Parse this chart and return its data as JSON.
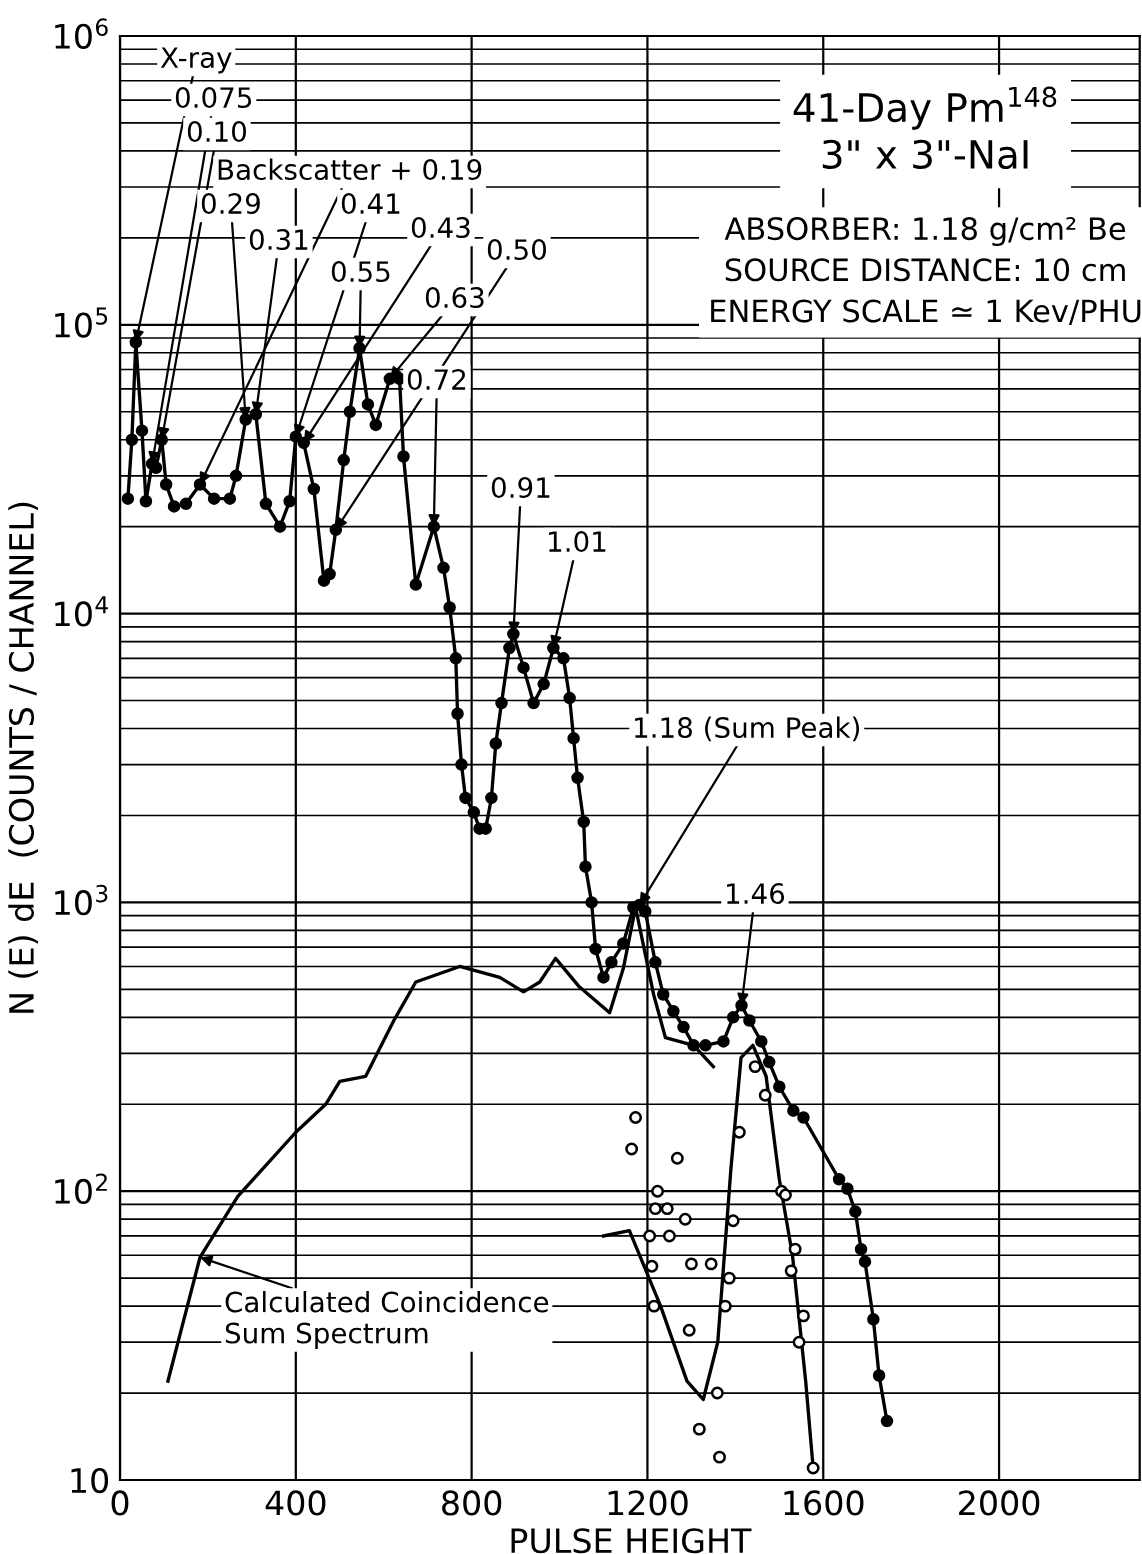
{
  "chart_data": {
    "type": "line",
    "title": "41-Day Pm$^{148}$\n3\" x 3\"-NaI",
    "subtitle": "ABSORBER: 1.18 g/cm² Be\nSOURCE DISTANCE: 10 cm\nENERGY SCALE ≃ 1 Kev/PHU",
    "xlabel": "PULSE HEIGHT",
    "ylabel": "N (E) dE  (COUNTS / CHANNEL)",
    "log": "y",
    "xlim": [
      0,
      2320
    ],
    "ylim": [
      10,
      1000000
    ],
    "xticks": [
      0,
      400,
      800,
      1200,
      1600,
      2000
    ],
    "yticks": [
      10,
      {
        "value": 100,
        "label": "10$^{2}$"
      },
      {
        "value": 1000,
        "label": "10$^{3}$"
      },
      {
        "value": 10000,
        "label": "10$^{4}$"
      },
      {
        "value": 100000,
        "label": "10$^{5}$"
      },
      {
        "value": 1000000,
        "label": "10$^{6}$"
      }
    ],
    "grid": true,
    "series": [
      {
        "color": "#000000",
        "marker": "circle",
        "x": [
          18,
          27,
          36,
          50,
          59,
          73,
          82,
          95,
          105,
          123,
          150,
          182,
          214,
          250,
          264,
          286,
          309,
          332,
          364,
          386,
          400,
          418,
          441,
          464,
          477,
          491,
          509,
          523,
          545,
          564,
          582,
          614,
          636,
          645,
          673,
          714,
          736,
          750,
          764,
          768,
          777,
          786,
          805,
          818,
          832,
          845,
          855,
          868,
          886,
          895,
          918,
          941,
          964,
          986,
          1009,
          1023,
          1032,
          1041,
          1055,
          1059,
          1073,
          1082,
          1100,
          1118,
          1145,
          1168,
          1182,
          1195,
          1218,
          1236,
          1259,
          1282,
          1305,
          1332,
          1373,
          1395,
          1414,
          1432,
          1459,
          1477,
          1500,
          1532,
          1555,
          1636,
          1655,
          1673,
          1686,
          1695,
          1714,
          1727,
          1745
        ],
        "values": [
          25000,
          40000,
          87000,
          43000,
          24500,
          33000,
          32000,
          40000,
          28000,
          23500,
          24000,
          28000,
          25000,
          25000,
          30000,
          47000,
          49000,
          24000,
          20000,
          24500,
          41000,
          39000,
          27000,
          13000,
          13700,
          19500,
          34000,
          50000,
          83000,
          53000,
          45000,
          65000,
          65000,
          35000,
          12600,
          20000,
          14400,
          10500,
          7000,
          4500,
          3000,
          2300,
          2050,
          1800,
          1800,
          2300,
          3550,
          4900,
          7600,
          8500,
          6500,
          4900,
          5700,
          7600,
          7000,
          5100,
          3700,
          2700,
          1900,
          1330,
          1000,
          690,
          550,
          620,
          720,
          960,
          980,
          930,
          620,
          480,
          420,
          370,
          320,
          320,
          330,
          400,
          440,
          390,
          330,
          280,
          230,
          190,
          180,
          110,
          102,
          85,
          63,
          57,
          36,
          23,
          16
        ]
      },
      {
        "color": "#000000",
        "marker": "none",
        "x": [
          109,
          182,
          268,
          400,
          468,
          500,
          559,
          623,
          673,
          773,
          864,
          918,
          955,
          991,
          1045,
          1114,
          1145,
          1173,
          1214,
          1241,
          1305,
          1350
        ],
        "values": [
          22,
          59,
          96,
          160,
          200,
          240,
          250,
          390,
          530,
          600,
          550,
          490,
          530,
          640,
          510,
          415,
          590,
          960,
          480,
          340,
          320,
          270
        ]
      },
      {
        "color": "#000000",
        "marker": "none",
        "x": [
          1100,
          1159,
          1230,
          1290,
          1327,
          1360,
          1390,
          1413,
          1440,
          1470,
          1500,
          1530,
          1560,
          1577
        ],
        "values": [
          70,
          73,
          40,
          22,
          19,
          30,
          120,
          290,
          320,
          250,
          110,
          60,
          22,
          11
        ]
      },
      {
        "type": "scatter",
        "color": "#000000",
        "marker": "circle",
        "x": [
          1164,
          1173,
          1205,
          1210,
          1215,
          1218,
          1223,
          1245,
          1250,
          1268,
          1286,
          1295,
          1300,
          1318,
          1345,
          1359,
          1364,
          1377,
          1386,
          1395,
          1409,
          1445,
          1468,
          1505,
          1514,
          1527,
          1536,
          1545,
          1555,
          1577
        ],
        "values": [
          140,
          180,
          70,
          55,
          40,
          87,
          100,
          87,
          70,
          130,
          80,
          33,
          56,
          15,
          56,
          20,
          12,
          40,
          50,
          79,
          160,
          270,
          215,
          100,
          97,
          53,
          63,
          30,
          37,
          11
        ]
      }
    ],
    "annotations": [
      {
        "text": "X-ray",
        "x": 36,
        "y": 87000
      },
      {
        "text": "0.075",
        "x": 73,
        "y": 33000
      },
      {
        "text": "0.10",
        "x": 95,
        "y": 40000
      },
      {
        "text": "Backscatter + 0.19",
        "x": 182,
        "y": 28000
      },
      {
        "text": "0.29",
        "x": 286,
        "y": 47000
      },
      {
        "text": "0.31",
        "x": 309,
        "y": 49000
      },
      {
        "text": "0.41",
        "x": 400,
        "y": 41000
      },
      {
        "text": "0.43",
        "x": 418,
        "y": 39000
      },
      {
        "text": "0.50",
        "x": 491,
        "y": 19500
      },
      {
        "text": "0.55",
        "x": 545,
        "y": 83000
      },
      {
        "text": "0.63",
        "x": 614,
        "y": 65000
      },
      {
        "text": "0.72",
        "x": 714,
        "y": 20000
      },
      {
        "text": "0.91",
        "x": 895,
        "y": 8500
      },
      {
        "text": "1.01",
        "x": 986,
        "y": 7600
      },
      {
        "text": "1.18 (Sum Peak)",
        "x": 1182,
        "y": 980
      },
      {
        "text": "1.46",
        "x": 1414,
        "y": 440
      },
      {
        "text": "Calculated Coincidence\nSum Spectrum",
        "x": 182,
        "y": 59
      }
    ]
  }
}
